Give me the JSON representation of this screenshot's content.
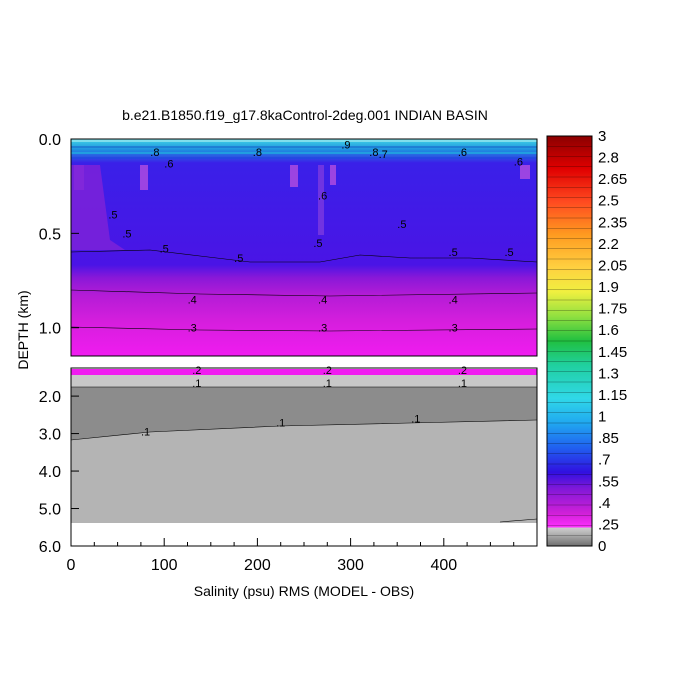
{
  "chart_data": {
    "type": "heatmap",
    "title": "b.e21.B1850.f19_g17.8kaControl-2deg.001 INDIAN BASIN",
    "xlabel": "Salinity (psu) RMS (MODEL - OBS)",
    "ylabel": "DEPTH (km)",
    "xlim": [
      0,
      500
    ],
    "x_ticks": [
      "0",
      "100",
      "200",
      "300",
      "400"
    ],
    "upper_panel": {
      "ylim": [
        0.0,
        1.15
      ],
      "y_ticks": [
        "0.0",
        "0.5",
        "1.0"
      ],
      "contour_labels": [
        {
          "text": ".8",
          "x": 90,
          "y": 0.07
        },
        {
          "text": ".6",
          "x": 105,
          "y": 0.13
        },
        {
          "text": ".8",
          "x": 200,
          "y": 0.07
        },
        {
          "text": ".9",
          "x": 295,
          "y": 0.03
        },
        {
          "text": ".8",
          "x": 325,
          "y": 0.07
        },
        {
          "text": ".7",
          "x": 335,
          "y": 0.08
        },
        {
          "text": ".6",
          "x": 420,
          "y": 0.07
        },
        {
          "text": ".6",
          "x": 480,
          "y": 0.12
        },
        {
          "text": ".5",
          "x": 45,
          "y": 0.4
        },
        {
          "text": ".5",
          "x": 60,
          "y": 0.5
        },
        {
          "text": ".5",
          "x": 100,
          "y": 0.58
        },
        {
          "text": ".5",
          "x": 180,
          "y": 0.63
        },
        {
          "text": ".6",
          "x": 270,
          "y": 0.3
        },
        {
          "text": ".5",
          "x": 265,
          "y": 0.55
        },
        {
          "text": ".5",
          "x": 355,
          "y": 0.45
        },
        {
          "text": ".5",
          "x": 410,
          "y": 0.6
        },
        {
          "text": ".5",
          "x": 470,
          "y": 0.6
        },
        {
          "text": ".4",
          "x": 130,
          "y": 0.85
        },
        {
          "text": ".4",
          "x": 270,
          "y": 0.85
        },
        {
          "text": ".4",
          "x": 410,
          "y": 0.85
        },
        {
          "text": ".3",
          "x": 130,
          "y": 1.0
        },
        {
          "text": ".3",
          "x": 270,
          "y": 1.0
        },
        {
          "text": ".3",
          "x": 410,
          "y": 1.0
        }
      ]
    },
    "lower_panel": {
      "ylim": [
        1.25,
        6.0
      ],
      "y_ticks": [
        "2.0",
        "3.0",
        "4.0",
        "5.0",
        "6.0"
      ],
      "contour_labels": [
        {
          "text": ".2",
          "x": 135,
          "y": 1.3
        },
        {
          "text": ".2",
          "x": 275,
          "y": 1.3
        },
        {
          "text": ".2",
          "x": 420,
          "y": 1.3
        },
        {
          "text": ".1",
          "x": 135,
          "y": 1.65
        },
        {
          "text": ".1",
          "x": 275,
          "y": 1.65
        },
        {
          "text": ".1",
          "x": 420,
          "y": 1.65
        },
        {
          "text": ".1",
          "x": 80,
          "y": 2.95
        },
        {
          "text": ".1",
          "x": 225,
          "y": 2.7
        },
        {
          "text": ".1",
          "x": 370,
          "y": 2.6
        }
      ]
    },
    "colorbar": {
      "labels": [
        "3",
        "2.8",
        "2.65",
        "2.5",
        "2.35",
        "2.2",
        "2.05",
        "1.9",
        "1.75",
        "1.6",
        "1.45",
        "1.3",
        "1.15",
        "1",
        ".85",
        ".7",
        ".55",
        ".4",
        ".25",
        "0"
      ],
      "top_color": "#8b0000",
      "bottom_color": "#707070"
    }
  }
}
